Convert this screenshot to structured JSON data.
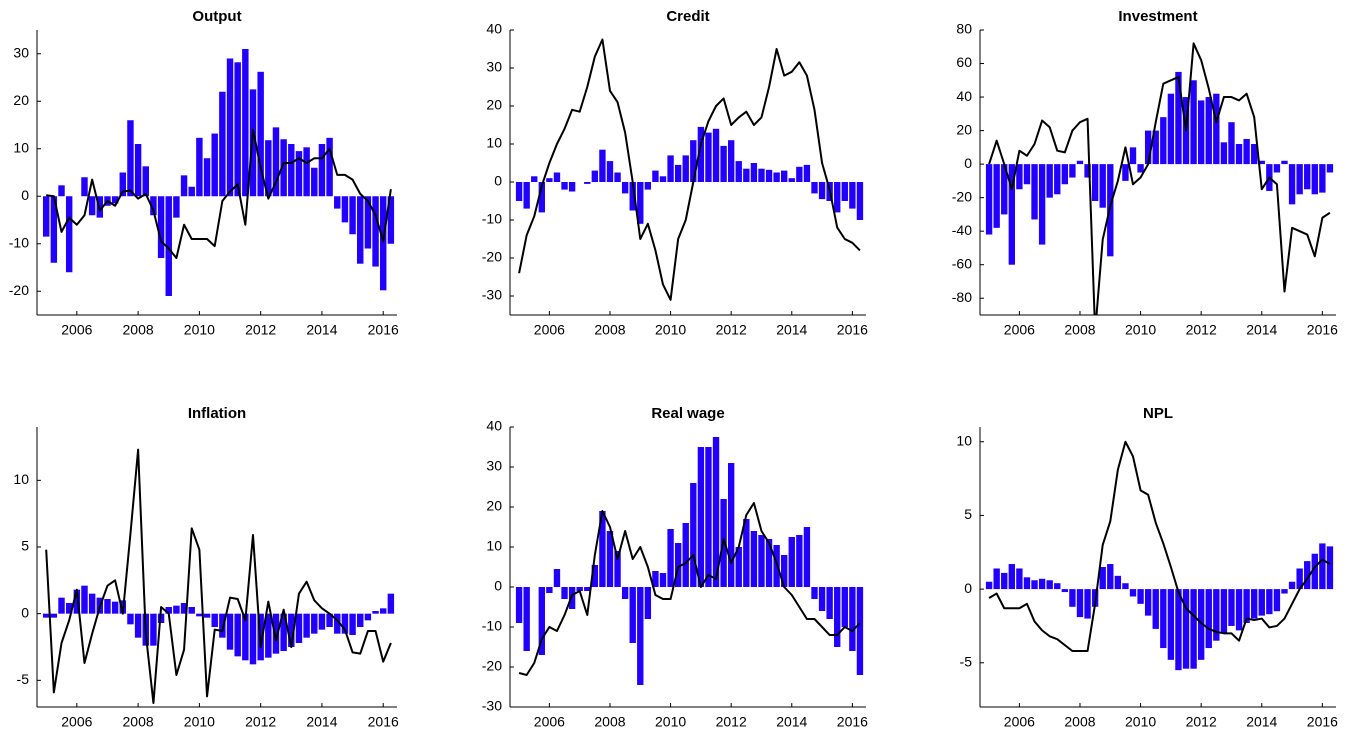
{
  "chart_data": [
    {
      "type": "combo",
      "title": "Output",
      "x": [
        2005,
        2005.25,
        2005.5,
        2005.75,
        2006,
        2006.25,
        2006.5,
        2006.75,
        2007,
        2007.25,
        2007.5,
        2007.75,
        2008,
        2008.25,
        2008.5,
        2008.75,
        2009,
        2009.25,
        2009.5,
        2009.75,
        2010,
        2010.25,
        2010.5,
        2010.75,
        2011,
        2011.25,
        2011.5,
        2011.75,
        2012,
        2012.25,
        2012.5,
        2012.75,
        2013,
        2013.25,
        2013.5,
        2013.75,
        2014,
        2014.25,
        2014.5,
        2014.75,
        2015,
        2015.25,
        2015.5,
        2015.75,
        2016,
        2016.25
      ],
      "xlim": [
        2004.7,
        2016.45
      ],
      "xticks": [
        2006,
        2008,
        2010,
        2012,
        2014,
        2016
      ],
      "ylim": [
        -25,
        35
      ],
      "yticks": [
        -20,
        -10,
        0,
        10,
        20,
        30
      ],
      "series": [
        {
          "type": "bar",
          "color": "#2200ff",
          "values": [
            -8.5,
            -14,
            2.3,
            -16,
            0,
            4,
            -4,
            -4.5,
            -2,
            -1.5,
            5,
            16,
            11,
            6.3,
            -4,
            -13,
            -21,
            -4.5,
            4.4,
            2,
            12.3,
            8,
            13.2,
            22,
            29,
            28.2,
            31,
            22.5,
            26.2,
            11.8,
            14.5,
            12,
            11,
            9.5,
            10.3,
            6,
            11,
            12.3,
            -2.6,
            -5.5,
            -8,
            -14.2,
            -11,
            -14.8,
            -19.8,
            -10
          ]
        },
        {
          "type": "line",
          "color": "#000000",
          "values": [
            0.2,
            0,
            -7.5,
            -4.5,
            -6,
            -4,
            3.5,
            -3,
            -1,
            -2,
            1,
            1.2,
            -0.5,
            0.5,
            -3,
            -9.5,
            -11,
            -13,
            -6,
            -9,
            -9,
            -9,
            -10.5,
            -1,
            1,
            2.5,
            -6,
            14,
            6,
            -0.5,
            3,
            7,
            7,
            8,
            7,
            8,
            8,
            10,
            4.5,
            4.5,
            3.5,
            0.5,
            -1,
            -4,
            -9.5,
            1.5
          ]
        }
      ]
    },
    {
      "type": "combo",
      "title": "Credit",
      "x": [
        2005,
        2005.25,
        2005.5,
        2005.75,
        2006,
        2006.25,
        2006.5,
        2006.75,
        2007,
        2007.25,
        2007.5,
        2007.75,
        2008,
        2008.25,
        2008.5,
        2008.75,
        2009,
        2009.25,
        2009.5,
        2009.75,
        2010,
        2010.25,
        2010.5,
        2010.75,
        2011,
        2011.25,
        2011.5,
        2011.75,
        2012,
        2012.25,
        2012.5,
        2012.75,
        2013,
        2013.25,
        2013.5,
        2013.75,
        2014,
        2014.25,
        2014.5,
        2014.75,
        2015,
        2015.25,
        2015.5,
        2015.75,
        2016,
        2016.25
      ],
      "xlim": [
        2004.7,
        2016.45
      ],
      "xticks": [
        2006,
        2008,
        2010,
        2012,
        2014,
        2016
      ],
      "ylim": [
        -35,
        40
      ],
      "yticks": [
        -30,
        -20,
        -10,
        0,
        10,
        20,
        30,
        40
      ],
      "series": [
        {
          "type": "bar",
          "color": "#2200ff",
          "values": [
            -5,
            -7,
            1.5,
            -8,
            1,
            2.5,
            -2,
            -2.5,
            0,
            -0.5,
            3,
            8.5,
            5.5,
            2.5,
            -3,
            -7.5,
            -11,
            -2,
            3,
            1.5,
            7,
            4.5,
            7,
            11,
            14.5,
            13,
            14,
            9.5,
            11,
            5.5,
            3.5,
            5,
            3.5,
            3.2,
            2.5,
            3,
            1,
            4,
            4.5,
            -3,
            -4.5,
            -5,
            -8,
            -5,
            -7,
            -10
          ]
        },
        {
          "type": "line",
          "color": "#000000",
          "values": [
            -24,
            -14,
            -9,
            -1,
            5,
            10,
            14,
            19,
            18.5,
            25,
            33,
            37.5,
            24,
            21,
            13,
            0,
            -15,
            -11,
            -18,
            -27,
            -31,
            -15,
            -10,
            0,
            10,
            16,
            20,
            22,
            15,
            17,
            18.5,
            15,
            17,
            25,
            35,
            28,
            29,
            31.5,
            28,
            19,
            5,
            -2,
            -12,
            -15,
            -16,
            -18
          ]
        }
      ]
    },
    {
      "type": "combo",
      "title": "Investment",
      "x": [
        2005,
        2005.25,
        2005.5,
        2005.75,
        2006,
        2006.25,
        2006.5,
        2006.75,
        2007,
        2007.25,
        2007.5,
        2007.75,
        2008,
        2008.25,
        2008.5,
        2008.75,
        2009,
        2009.25,
        2009.5,
        2009.75,
        2010,
        2010.25,
        2010.5,
        2010.75,
        2011,
        2011.25,
        2011.5,
        2011.75,
        2012,
        2012.25,
        2012.5,
        2012.75,
        2013,
        2013.25,
        2013.5,
        2013.75,
        2014,
        2014.25,
        2014.5,
        2014.75,
        2015,
        2015.25,
        2015.5,
        2015.75,
        2016,
        2016.25
      ],
      "xlim": [
        2004.7,
        2016.45
      ],
      "xticks": [
        2006,
        2008,
        2010,
        2012,
        2014,
        2016
      ],
      "ylim": [
        -90,
        80
      ],
      "yticks": [
        -80,
        -60,
        -40,
        -20,
        0,
        20,
        40,
        60,
        80
      ],
      "series": [
        {
          "type": "bar",
          "color": "#2200ff",
          "values": [
            -42,
            -38,
            -30,
            -60,
            -15,
            -12,
            -33,
            -48,
            -20,
            -18,
            -12,
            -8,
            2,
            -8,
            -22,
            -26,
            -55,
            0,
            -10,
            10,
            -5,
            20,
            20,
            28,
            42,
            55,
            40,
            50,
            38,
            40,
            42,
            13,
            25,
            12,
            15,
            12,
            2,
            -16,
            -5,
            2,
            -24,
            -18,
            -15,
            -18,
            -17,
            -5
          ]
        },
        {
          "type": "line",
          "color": "#000000",
          "values": [
            0,
            14,
            0,
            -15,
            8,
            5,
            12,
            26,
            22,
            8,
            7,
            20,
            25,
            27,
            -100,
            -45,
            -25,
            -10,
            10,
            -12,
            -8,
            0,
            25,
            48,
            50,
            52,
            20,
            72,
            62,
            45,
            25,
            40,
            40,
            38,
            42,
            28,
            -15,
            -8,
            -12,
            -76,
            -38,
            -40,
            -42,
            -55,
            -32,
            -29
          ]
        }
      ]
    },
    {
      "type": "combo",
      "title": "Inflation",
      "x": [
        2005,
        2005.25,
        2005.5,
        2005.75,
        2006,
        2006.25,
        2006.5,
        2006.75,
        2007,
        2007.25,
        2007.5,
        2007.75,
        2008,
        2008.25,
        2008.5,
        2008.75,
        2009,
        2009.25,
        2009.5,
        2009.75,
        2010,
        2010.25,
        2010.5,
        2010.75,
        2011,
        2011.25,
        2011.5,
        2011.75,
        2012,
        2012.25,
        2012.5,
        2012.75,
        2013,
        2013.25,
        2013.5,
        2013.75,
        2014,
        2014.25,
        2014.5,
        2014.75,
        2015,
        2015.25,
        2015.5,
        2015.75,
        2016,
        2016.25
      ],
      "xlim": [
        2004.7,
        2016.45
      ],
      "xticks": [
        2006,
        2008,
        2010,
        2012,
        2014,
        2016
      ],
      "ylim": [
        -7,
        14
      ],
      "yticks": [
        -5,
        0,
        5,
        10
      ],
      "series": [
        {
          "type": "bar",
          "color": "#2200ff",
          "values": [
            -0.3,
            -0.3,
            1.2,
            0.8,
            1.8,
            2.1,
            1.5,
            1.2,
            1.1,
            0.9,
            1,
            -0.8,
            -1.8,
            -2.4,
            -2.4,
            -0.7,
            0.5,
            0.6,
            0.8,
            0.5,
            -0.2,
            -0.3,
            -1,
            -1.8,
            -2.7,
            -3.2,
            -3.5,
            -3.8,
            -3.5,
            -3.3,
            -3,
            -2.8,
            -2.5,
            -2.2,
            -1.8,
            -1.5,
            -1.2,
            -1,
            -1.5,
            -1.5,
            -1.6,
            -1,
            -0.5,
            0.2,
            0.4,
            1.5
          ]
        },
        {
          "type": "line",
          "color": "#000000",
          "values": [
            4.8,
            -5.9,
            -2.2,
            -0.5,
            1.8,
            -3.7,
            -1.5,
            0.5,
            2.1,
            2.5,
            0,
            6,
            12.3,
            -1.5,
            -6.7,
            0.5,
            0,
            -4.6,
            -2.7,
            6.4,
            4.8,
            -6.2,
            -1.2,
            -1.3,
            1.2,
            1.1,
            -0.5,
            5.9,
            -2.5,
            0.9,
            -2,
            0.3,
            -2.5,
            1.5,
            2.4,
            1,
            0.4,
            0,
            -0.5,
            -1.2,
            -2.9,
            -3,
            -1.3,
            -1.3,
            -3.6,
            -2.2
          ]
        }
      ]
    },
    {
      "type": "combo",
      "title": "Real wage",
      "x": [
        2005,
        2005.25,
        2005.5,
        2005.75,
        2006,
        2006.25,
        2006.5,
        2006.75,
        2007,
        2007.25,
        2007.5,
        2007.75,
        2008,
        2008.25,
        2008.5,
        2008.75,
        2009,
        2009.25,
        2009.5,
        2009.75,
        2010,
        2010.25,
        2010.5,
        2010.75,
        2011,
        2011.25,
        2011.5,
        2011.75,
        2012,
        2012.25,
        2012.5,
        2012.75,
        2013,
        2013.25,
        2013.5,
        2013.75,
        2014,
        2014.25,
        2014.5,
        2014.75,
        2015,
        2015.25,
        2015.5,
        2015.75,
        2016,
        2016.25
      ],
      "xlim": [
        2004.7,
        2016.45
      ],
      "xticks": [
        2006,
        2008,
        2010,
        2012,
        2014,
        2016
      ],
      "ylim": [
        -30,
        40
      ],
      "yticks": [
        -30,
        -20,
        -10,
        0,
        10,
        20,
        30,
        40
      ],
      "series": [
        {
          "type": "bar",
          "color": "#2200ff",
          "values": [
            -9,
            -16,
            0,
            -17,
            -1.5,
            4.5,
            -3,
            -5.5,
            -1,
            -1,
            5.5,
            19,
            14,
            9,
            -3,
            -14,
            -24.5,
            -8,
            4,
            3.5,
            14.5,
            11,
            16,
            26,
            35,
            35,
            37.5,
            22,
            31,
            10,
            17,
            14,
            13,
            12,
            10.5,
            8,
            12.5,
            13,
            15,
            -3,
            -6,
            -8,
            -15,
            -10,
            -16,
            -22
          ]
        },
        {
          "type": "line",
          "color": "#000000",
          "values": [
            -21.5,
            -22,
            -19,
            -13,
            -10,
            -11,
            -7,
            -2,
            -1,
            -7,
            8,
            19,
            15,
            7,
            14,
            7,
            10,
            5,
            -2,
            -3,
            -3,
            5,
            6,
            8,
            0,
            3,
            2,
            12,
            6,
            10,
            18,
            21,
            14,
            11,
            6,
            0,
            -2,
            -5,
            -8,
            -8,
            -10,
            -12,
            -12,
            -10,
            -11,
            -9
          ]
        }
      ]
    },
    {
      "type": "combo",
      "title": "NPL",
      "x": [
        2005,
        2005.25,
        2005.5,
        2005.75,
        2006,
        2006.25,
        2006.5,
        2006.75,
        2007,
        2007.25,
        2007.5,
        2007.75,
        2008,
        2008.25,
        2008.5,
        2008.75,
        2009,
        2009.25,
        2009.5,
        2009.75,
        2010,
        2010.25,
        2010.5,
        2010.75,
        2011,
        2011.25,
        2011.5,
        2011.75,
        2012,
        2012.25,
        2012.5,
        2012.75,
        2013,
        2013.25,
        2013.5,
        2013.75,
        2014,
        2014.25,
        2014.5,
        2014.75,
        2015,
        2015.25,
        2015.5,
        2015.75,
        2016,
        2016.25
      ],
      "xlim": [
        2004.7,
        2016.45
      ],
      "xticks": [
        2006,
        2008,
        2010,
        2012,
        2014,
        2016
      ],
      "ylim": [
        -8,
        11
      ],
      "yticks": [
        -5,
        0,
        5,
        10
      ],
      "series": [
        {
          "type": "bar",
          "color": "#2200ff",
          "values": [
            0.5,
            1.4,
            1.1,
            1.7,
            1.4,
            0.8,
            0.6,
            0.7,
            0.6,
            0.4,
            -0.2,
            -1.2,
            -1.9,
            -2,
            -1.2,
            1.5,
            1.7,
            0.9,
            0.4,
            -0.5,
            -1,
            -1.8,
            -2.7,
            -4,
            -4.8,
            -5.5,
            -5.4,
            -5.4,
            -4.8,
            -4,
            -3.5,
            -3,
            -2.5,
            -2.8,
            -2.3,
            -2,
            -1.8,
            -1.7,
            -1.5,
            -0.3,
            0.5,
            1.4,
            1.9,
            2.4,
            3.1,
            2.9
          ]
        },
        {
          "type": "line",
          "color": "#000000",
          "values": [
            -0.6,
            -0.3,
            -1.3,
            -1.3,
            -1.3,
            -1,
            -2.2,
            -2.8,
            -3.2,
            -3.4,
            -3.8,
            -4.2,
            -4.2,
            -4.2,
            -1,
            3,
            4.6,
            8.1,
            10,
            9,
            6.7,
            6.4,
            4.5,
            3.1,
            1.5,
            -0.2,
            -1.3,
            -1.8,
            -2.3,
            -2.7,
            -2.9,
            -3,
            -3,
            -3.5,
            -2,
            -2.1,
            -2,
            -2.6,
            -2.5,
            -2,
            -1,
            0,
            0.7,
            1.5,
            2,
            1.7
          ]
        }
      ]
    }
  ]
}
